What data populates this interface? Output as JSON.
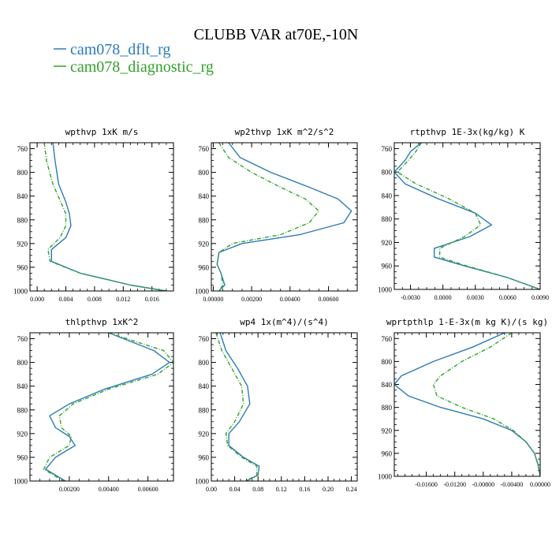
{
  "figure": {
    "title": "CLUBB VAR at70E,-10N",
    "legend": [
      {
        "label": "cam078_dflt_rg",
        "color": "#2c7bb6",
        "dash": false
      },
      {
        "label": "cam078_diagnostic_rg",
        "color": "#33a02c",
        "dash": true
      }
    ]
  },
  "chart_data": [
    {
      "type": "line",
      "title": "wpthvp  1xK m/s",
      "xlim": [
        -0.001,
        0.019
      ],
      "xticks": [
        0.0,
        0.004,
        0.008,
        0.012,
        0.016
      ],
      "xticklabels": [
        "0.000",
        "0.004",
        "0.008",
        "0.012",
        "0.016"
      ],
      "ylim": [
        750,
        1000
      ],
      "yticks": [
        760,
        800,
        840,
        880,
        920,
        960,
        1000
      ],
      "yticklabels": [
        "760",
        "800",
        "840",
        "880",
        "920",
        "960",
        "1000"
      ],
      "legend": "top-left",
      "series": [
        {
          "name": "cam078_dflt_rg",
          "y": [
            750,
            780,
            820,
            850,
            870,
            890,
            910,
            930,
            950,
            970,
            990,
            1000
          ],
          "x": [
            0.0022,
            0.0025,
            0.003,
            0.004,
            0.0045,
            0.0047,
            0.004,
            0.002,
            0.002,
            0.006,
            0.013,
            0.018
          ]
        },
        {
          "name": "cam078_diagnostic_rg",
          "y": [
            750,
            780,
            820,
            850,
            870,
            890,
            910,
            930,
            950,
            970,
            990,
            1000
          ],
          "x": [
            0.001,
            0.0013,
            0.0022,
            0.0033,
            0.004,
            0.004,
            0.0032,
            0.0015,
            0.0018,
            0.006,
            0.013,
            0.018
          ]
        }
      ]
    },
    {
      "type": "line",
      "title": "wp2thvp  1xK m^2/s^2",
      "xlim": [
        -0.0001,
        0.0075
      ],
      "xticks": [
        0.0,
        0.002,
        0.004,
        0.006
      ],
      "xticklabels": [
        "0.00000",
        "0.00200",
        "0.00400",
        "0.00600"
      ],
      "ylim": [
        750,
        1000
      ],
      "yticks": [
        760,
        800,
        840,
        880,
        920,
        960,
        1000
      ],
      "yticklabels": [
        "760",
        "800",
        "840",
        "880",
        "920",
        "960",
        "1000"
      ],
      "legend": "top-left",
      "series": [
        {
          "name": "cam078_dflt_rg",
          "y": [
            750,
            775,
            800,
            825,
            845,
            865,
            885,
            905,
            920,
            935,
            955,
            970,
            990,
            1000
          ],
          "x": [
            0.0008,
            0.0014,
            0.003,
            0.005,
            0.0065,
            0.0072,
            0.0068,
            0.0045,
            0.0015,
            0.0003,
            0.0002,
            0.0004,
            0.0006,
            0.0003
          ]
        },
        {
          "name": "cam078_diagnostic_rg",
          "y": [
            750,
            775,
            800,
            825,
            845,
            865,
            885,
            905,
            920,
            935,
            955,
            970,
            990,
            1000
          ],
          "x": [
            0.0003,
            0.0008,
            0.002,
            0.0035,
            0.0048,
            0.0055,
            0.005,
            0.0035,
            0.001,
            0.0003,
            0.0002,
            0.0004,
            0.0005,
            0.0003
          ]
        }
      ]
    },
    {
      "type": "line",
      "title": "rtpthvp  1E-3x(kg/kg) K",
      "xlim": [
        -0.0045,
        0.009
      ],
      "xticks": [
        -0.003,
        0.0,
        0.003,
        0.006,
        0.009
      ],
      "xticklabels": [
        "-0.0030",
        "0.0000",
        "0.0030",
        "0.0060",
        "0.0090"
      ],
      "ylim": [
        750,
        1000
      ],
      "yticks": [
        760,
        800,
        840,
        880,
        920,
        960,
        1000
      ],
      "yticklabels": [
        "760",
        "800",
        "840",
        "880",
        "920",
        "960",
        "1000"
      ],
      "legend": "top-left",
      "series": [
        {
          "name": "cam078_dflt_rg",
          "y": [
            750,
            765,
            780,
            800,
            820,
            845,
            870,
            890,
            910,
            930,
            945,
            960,
            980,
            1000
          ],
          "x": [
            -0.002,
            -0.003,
            -0.0035,
            -0.0045,
            -0.0035,
            -0.0005,
            0.003,
            0.0045,
            0.0025,
            -0.0008,
            -0.0008,
            0.002,
            0.006,
            0.009
          ]
        },
        {
          "name": "cam078_diagnostic_rg",
          "y": [
            750,
            765,
            780,
            800,
            820,
            845,
            870,
            890,
            910,
            930,
            945,
            960,
            980,
            1000
          ],
          "x": [
            -0.002,
            -0.0025,
            -0.0032,
            -0.0042,
            -0.0025,
            0.0005,
            0.003,
            0.0035,
            0.002,
            -0.0003,
            -0.0003,
            0.0022,
            0.006,
            0.009
          ]
        }
      ]
    },
    {
      "type": "line",
      "title": "thlpthvp  1xK^2",
      "xlim": [
        0.0,
        0.0073
      ],
      "xticks": [
        0.002,
        0.004,
        0.006
      ],
      "xticklabels": [
        "0.00200",
        "0.00400",
        "0.00600"
      ],
      "ylim": [
        750,
        1000
      ],
      "yticks": [
        760,
        800,
        840,
        880,
        920,
        960,
        1000
      ],
      "yticklabels": [
        "760",
        "800",
        "840",
        "880",
        "920",
        "960",
        "1000"
      ],
      "legend": "top-left",
      "series": [
        {
          "name": "cam078_dflt_rg",
          "y": [
            750,
            780,
            800,
            820,
            845,
            870,
            890,
            910,
            925,
            940,
            960,
            980,
            1000
          ],
          "x": [
            0.004,
            0.0063,
            0.0071,
            0.0062,
            0.0038,
            0.002,
            0.001,
            0.0013,
            0.002,
            0.0023,
            0.0013,
            0.0008,
            0.0018
          ]
        },
        {
          "name": "cam078_diagnostic_rg",
          "y": [
            750,
            780,
            800,
            820,
            845,
            870,
            890,
            910,
            925,
            940,
            960,
            980,
            1000
          ],
          "x": [
            0.004,
            0.0068,
            0.0073,
            0.0065,
            0.004,
            0.0022,
            0.0015,
            0.0016,
            0.0021,
            0.002,
            0.001,
            0.0007,
            0.0017
          ]
        }
      ]
    },
    {
      "type": "line",
      "title": "wp4  1x(m^4)/(s^4)",
      "xlim": [
        0.0,
        0.25
      ],
      "xticks": [
        0.0,
        0.04,
        0.08,
        0.12,
        0.16,
        0.2,
        0.24
      ],
      "xticklabels": [
        "0.00",
        "0.04",
        "0.08",
        "0.12",
        "0.16",
        "0.20",
        "0.24"
      ],
      "ylim": [
        750,
        1000
      ],
      "yticks": [
        760,
        800,
        840,
        880,
        920,
        960,
        1000
      ],
      "yticklabels": [
        "760",
        "800",
        "840",
        "880",
        "920",
        "960",
        "1000"
      ],
      "legend": "top-left",
      "series": [
        {
          "name": "cam078_dflt_rg",
          "y": [
            750,
            780,
            810,
            840,
            870,
            900,
            920,
            940,
            960,
            975,
            990,
            1000
          ],
          "x": [
            0.015,
            0.025,
            0.045,
            0.062,
            0.066,
            0.048,
            0.03,
            0.03,
            0.055,
            0.082,
            0.08,
            0.06
          ]
        },
        {
          "name": "cam078_diagnostic_rg",
          "y": [
            750,
            780,
            810,
            840,
            870,
            900,
            920,
            940,
            960,
            975,
            990,
            1000
          ],
          "x": [
            0.008,
            0.018,
            0.035,
            0.052,
            0.055,
            0.04,
            0.025,
            0.028,
            0.052,
            0.078,
            0.078,
            0.058
          ]
        }
      ]
    },
    {
      "type": "line",
      "title": "wprtpthlp  1-E-3x(m kg K)/(s kg)",
      "xlim": [
        -0.0205,
        0.0
      ],
      "xticks": [
        -0.016,
        -0.012,
        -0.008,
        -0.004,
        0.0
      ],
      "xticklabels": [
        "-0.01600",
        "-0.01200",
        "-0.00800",
        "-0.00400",
        "0.00000"
      ],
      "ylim": [
        750,
        1000
      ],
      "yticks": [
        760,
        800,
        840,
        880,
        920,
        960,
        1000
      ],
      "yticklabels": [
        "760",
        "800",
        "840",
        "880",
        "920",
        "960",
        "1000"
      ],
      "legend": "top-left",
      "series": [
        {
          "name": "cam078_dflt_rg",
          "y": [
            750,
            775,
            800,
            825,
            840,
            860,
            880,
            900,
            920,
            940,
            960,
            980,
            1000
          ],
          "x": [
            -0.005,
            -0.0095,
            -0.015,
            -0.0195,
            -0.0205,
            -0.0185,
            -0.014,
            -0.008,
            -0.004,
            -0.002,
            -0.0008,
            -0.0003,
            0.0
          ]
        },
        {
          "name": "cam078_diagnostic_rg",
          "y": [
            750,
            775,
            800,
            825,
            840,
            860,
            880,
            900,
            920,
            940,
            960,
            980,
            1000
          ],
          "x": [
            -0.004,
            -0.007,
            -0.011,
            -0.014,
            -0.015,
            -0.0145,
            -0.011,
            -0.0065,
            -0.0038,
            -0.002,
            -0.0008,
            -0.0003,
            0.0
          ]
        }
      ]
    }
  ]
}
